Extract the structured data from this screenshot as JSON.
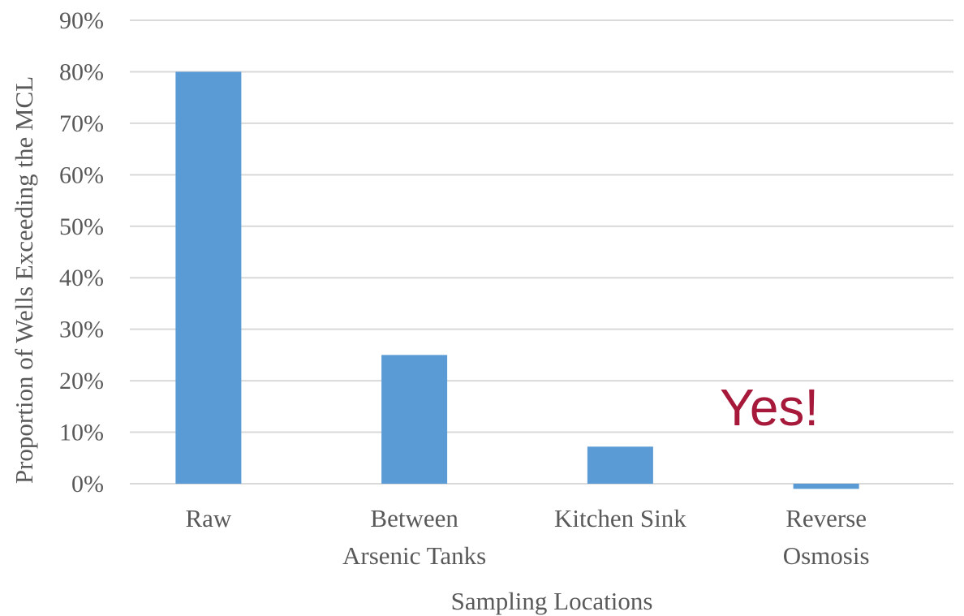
{
  "chart_data": {
    "type": "bar",
    "categories": [
      [
        "Raw"
      ],
      [
        "Between",
        "Arsenic Tanks"
      ],
      [
        "Kitchen Sink"
      ],
      [
        "Reverse",
        "Osmosis"
      ]
    ],
    "values": [
      80,
      25,
      7.2,
      -1
    ],
    "ylabel": "Proportion of Wells Exceeding the MCL",
    "xlabel": "Sampling Locations",
    "ylim": [
      0,
      90
    ],
    "yticks": [
      "0%",
      "10%",
      "20%",
      "30%",
      "40%",
      "50%",
      "60%",
      "70%",
      "80%",
      "90%"
    ],
    "grid": true,
    "bar_color": "#5b9bd5",
    "grid_color": "#d9d9d9",
    "annotation": {
      "text": "Yes!",
      "color": "#a6193a"
    }
  }
}
